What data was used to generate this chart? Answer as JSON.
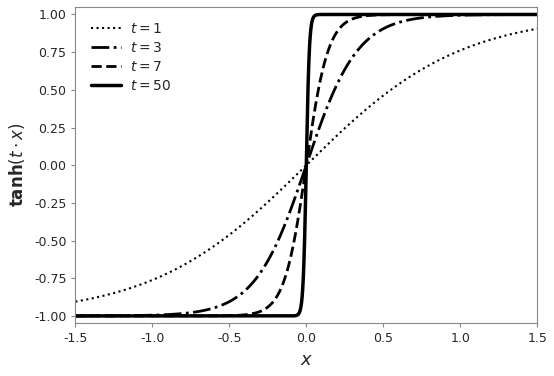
{
  "t_values": [
    1,
    3,
    7,
    50
  ],
  "linestyles": [
    "dotted",
    "dashdot",
    "dashed",
    "solid"
  ],
  "linewidths": [
    1.5,
    2.0,
    2.0,
    2.5
  ],
  "colors": [
    "black",
    "black",
    "black",
    "black"
  ],
  "legend_labels": [
    "$t = 1$",
    "$t = 3$",
    "$t = 7$",
    "$t = 50$"
  ],
  "xlabel": "$x$",
  "ylabel": "${\\rm \\mathbf{tanh}}(t \\cdot x)$",
  "xlim": [
    -1.5,
    1.5
  ],
  "ylim": [
    -1.05,
    1.05
  ],
  "yticks": [
    -1.0,
    -0.75,
    -0.5,
    -0.25,
    0.0,
    0.25,
    0.5,
    0.75,
    1.0
  ],
  "xticks": [
    -1.5,
    -1.0,
    -0.5,
    0.0,
    0.5,
    1.0,
    1.5
  ],
  "background_color": "#ffffff",
  "figure_background": "#ffffff",
  "spine_color": "#444444",
  "legend_loc": "upper left"
}
